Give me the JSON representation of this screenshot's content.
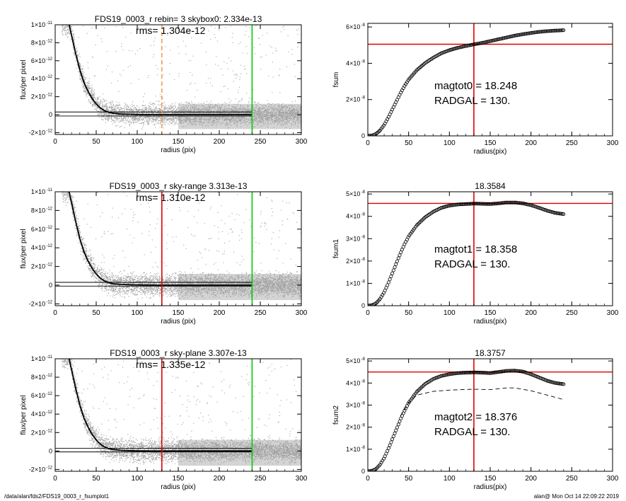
{
  "footer": {
    "path": "/data/alan/fds2/FDS19_0003_r_fsumplot1",
    "stamp": "alan@  Mon Oct 14 22:09:22 2019"
  },
  "colors": {
    "scatter": "#a0a0a0",
    "profile": "#000000",
    "red": "#e00000",
    "green": "#00cc00",
    "orange": "#f0a050"
  },
  "chart_data": [
    {
      "type": "scatter",
      "title": "FDS19_0003_r rebin= 3    skybox0:  2.334e-13",
      "annotation": "rms= 1.304e-12",
      "xlabel": "radius (pix)",
      "ylabel": "flux/per pixel",
      "xlim": [
        0,
        300
      ],
      "ylim": [
        -2.2e-12,
        1e-11
      ],
      "xticks": [
        0,
        50,
        100,
        150,
        200,
        250,
        300
      ],
      "yticks": [
        {
          "v": -2e-12,
          "m": "-2",
          "e": "-12"
        },
        {
          "v": 0,
          "m": "0",
          "e": ""
        },
        {
          "v": 2e-12,
          "m": "2",
          "e": "-12"
        },
        {
          "v": 4e-12,
          "m": "4",
          "e": "-12"
        },
        {
          "v": 6e-12,
          "m": "6",
          "e": "-12"
        },
        {
          "v": 8e-12,
          "m": "8",
          "e": "-12"
        },
        {
          "v": 1e-11,
          "m": "1",
          "e": "-11"
        }
      ],
      "vlines": [
        {
          "x": 130,
          "color": "orange",
          "dashed": true
        },
        {
          "x": 240,
          "color": "green"
        }
      ],
      "hlines": [
        3e-13,
        -1.5e-13
      ],
      "profile_x": [
        17,
        20,
        25,
        30,
        35,
        40,
        45,
        50,
        55,
        60,
        65,
        70,
        80,
        90,
        100,
        120,
        150,
        200,
        240
      ],
      "profile_y": [
        1e-11,
        8.8e-12,
        6.8e-12,
        5e-12,
        3.6e-12,
        2.6e-12,
        1.8e-12,
        1.2e-12,
        7.5e-13,
        4.5e-13,
        2.6e-13,
        1.6e-13,
        7e-14,
        4e-14,
        2e-14,
        0,
        0,
        0,
        0
      ]
    },
    {
      "type": "scatter",
      "title": "FDS19_0003_r sky-range  3.313e-13",
      "annotation": "rms= 1.310e-12",
      "xlabel": "radius (pix)",
      "ylabel": "flux/per pixel",
      "xlim": [
        0,
        300
      ],
      "ylim": [
        -2.2e-12,
        1e-11
      ],
      "xticks": [
        0,
        50,
        100,
        150,
        200,
        250,
        300
      ],
      "yticks": [
        {
          "v": -2e-12,
          "m": "-2",
          "e": "-12"
        },
        {
          "v": 0,
          "m": "0",
          "e": ""
        },
        {
          "v": 2e-12,
          "m": "2",
          "e": "-12"
        },
        {
          "v": 4e-12,
          "m": "4",
          "e": "-12"
        },
        {
          "v": 6e-12,
          "m": "6",
          "e": "-12"
        },
        {
          "v": 8e-12,
          "m": "8",
          "e": "-12"
        },
        {
          "v": 1e-11,
          "m": "1",
          "e": "-11"
        }
      ],
      "vlines": [
        {
          "x": 130,
          "color": "red"
        },
        {
          "x": 240,
          "color": "green"
        }
      ],
      "hlines": [
        3e-13,
        -1e-13
      ],
      "profile_x": [
        17,
        20,
        25,
        30,
        35,
        40,
        45,
        50,
        55,
        60,
        65,
        70,
        80,
        90,
        100,
        120,
        150,
        200,
        240
      ],
      "profile_y": [
        1e-11,
        8.8e-12,
        6.8e-12,
        5e-12,
        3.6e-12,
        2.6e-12,
        1.8e-12,
        1.2e-12,
        7.5e-13,
        4.5e-13,
        2.6e-13,
        1.6e-13,
        7e-14,
        4e-14,
        2e-14,
        0,
        0,
        0,
        0
      ]
    },
    {
      "type": "scatter",
      "title": "FDS19_0003_r sky-plane  3.307e-13",
      "annotation": "rms= 1.335e-12",
      "xlabel": "radius (pix)",
      "ylabel": "flux/per pixel",
      "xlim": [
        0,
        300
      ],
      "ylim": [
        -2.2e-12,
        1e-11
      ],
      "xticks": [
        0,
        50,
        100,
        150,
        200,
        250,
        300
      ],
      "yticks": [
        {
          "v": -2e-12,
          "m": "-2",
          "e": "-12"
        },
        {
          "v": 0,
          "m": "0",
          "e": ""
        },
        {
          "v": 2e-12,
          "m": "2",
          "e": "-12"
        },
        {
          "v": 4e-12,
          "m": "4",
          "e": "-12"
        },
        {
          "v": 6e-12,
          "m": "6",
          "e": "-12"
        },
        {
          "v": 8e-12,
          "m": "8",
          "e": "-12"
        },
        {
          "v": 1e-11,
          "m": "1",
          "e": "-11"
        }
      ],
      "vlines": [
        {
          "x": 130,
          "color": "red"
        },
        {
          "x": 240,
          "color": "green"
        }
      ],
      "hlines": [
        3e-13,
        -1e-13
      ],
      "profile_x": [
        17,
        20,
        25,
        30,
        35,
        40,
        45,
        50,
        55,
        60,
        65,
        70,
        80,
        90,
        100,
        120,
        150,
        200,
        240
      ],
      "profile_y": [
        1e-11,
        8.8e-12,
        6.8e-12,
        5e-12,
        3.6e-12,
        2.6e-12,
        1.8e-12,
        1.2e-12,
        7.5e-13,
        4.5e-13,
        2.6e-13,
        1.6e-13,
        7e-14,
        4e-14,
        2e-14,
        0,
        0,
        0,
        0
      ]
    },
    {
      "type": "line",
      "title": "",
      "annotations": [
        "magtot0 =  18.248",
        "RADGAL =    130."
      ],
      "xlabel": "radius(pix)",
      "ylabel": "fsum",
      "xlim": [
        0,
        300
      ],
      "ylim": [
        0,
        6.2e-08
      ],
      "xticks": [
        0,
        50,
        100,
        150,
        200,
        250,
        300
      ],
      "yticks": [
        {
          "v": 0,
          "m": "0",
          "e": ""
        },
        {
          "v": 2e-08,
          "m": "2×10",
          "e": "-8"
        },
        {
          "v": 4e-08,
          "m": "4×10",
          "e": "-8"
        },
        {
          "v": 6e-08,
          "m": "6×10",
          "e": "-8"
        }
      ],
      "vlines": [
        {
          "x": 130,
          "color": "red"
        }
      ],
      "hline": 5.05e-08,
      "curve_x": [
        0,
        5,
        10,
        15,
        20,
        25,
        30,
        35,
        40,
        45,
        50,
        60,
        70,
        80,
        90,
        100,
        110,
        120,
        130,
        140,
        150,
        160,
        170,
        180,
        190,
        200,
        210,
        220,
        230,
        240
      ],
      "curve_y": [
        0,
        2e-10,
        1e-09,
        3e-09,
        6e-09,
        1e-08,
        1.45e-08,
        1.9e-08,
        2.35e-08,
        2.75e-08,
        3.1e-08,
        3.62e-08,
        4e-08,
        4.3e-08,
        4.55e-08,
        4.72e-08,
        4.85e-08,
        4.95e-08,
        5.04e-08,
        5.12e-08,
        5.22e-08,
        5.32e-08,
        5.42e-08,
        5.52e-08,
        5.6e-08,
        5.67e-08,
        5.73e-08,
        5.77e-08,
        5.8e-08,
        5.82e-08
      ]
    },
    {
      "type": "line",
      "title": "18.3584",
      "annotations": [
        "magtot1 =  18.358",
        "RADGAL =    130."
      ],
      "xlabel": "radius(pix)",
      "ylabel": "fsum1",
      "xlim": [
        0,
        300
      ],
      "ylim": [
        0,
        5.1e-08
      ],
      "xticks": [
        0,
        50,
        100,
        150,
        200,
        250,
        300
      ],
      "yticks": [
        {
          "v": 0,
          "m": "0",
          "e": ""
        },
        {
          "v": 1e-08,
          "m": "1×10",
          "e": "-8"
        },
        {
          "v": 2e-08,
          "m": "2×10",
          "e": "-8"
        },
        {
          "v": 3e-08,
          "m": "3×10",
          "e": "-8"
        },
        {
          "v": 4e-08,
          "m": "4×10",
          "e": "-8"
        },
        {
          "v": 5e-08,
          "m": "5×10",
          "e": "-8"
        }
      ],
      "vlines": [
        {
          "x": 130,
          "color": "red"
        }
      ],
      "hline": 4.58e-08,
      "curve_x": [
        0,
        5,
        10,
        15,
        20,
        25,
        30,
        35,
        40,
        45,
        50,
        60,
        70,
        80,
        90,
        100,
        110,
        120,
        130,
        140,
        150,
        160,
        170,
        180,
        190,
        200,
        210,
        220,
        230,
        240
      ],
      "curve_y": [
        0,
        2e-10,
        1e-09,
        3e-09,
        6e-09,
        1e-08,
        1.45e-08,
        1.9e-08,
        2.35e-08,
        2.75e-08,
        3.1e-08,
        3.6e-08,
        3.95e-08,
        4.2e-08,
        4.38e-08,
        4.48e-08,
        4.53e-08,
        4.55e-08,
        4.57e-08,
        4.56e-08,
        4.55e-08,
        4.58e-08,
        4.62e-08,
        4.62e-08,
        4.58e-08,
        4.5e-08,
        4.38e-08,
        4.25e-08,
        4.15e-08,
        4.1e-08
      ]
    },
    {
      "type": "line",
      "title": "18.3757",
      "annotations": [
        "magtot2 =  18.376",
        "RADGAL =    130."
      ],
      "xlabel": "radius(pix)",
      "ylabel": "fsum2",
      "xlim": [
        0,
        300
      ],
      "ylim": [
        0,
        5.1e-08
      ],
      "xticks": [
        0,
        50,
        100,
        150,
        200,
        250,
        300
      ],
      "yticks": [
        {
          "v": 0,
          "m": "0",
          "e": ""
        },
        {
          "v": 1e-08,
          "m": "1×10",
          "e": "-8"
        },
        {
          "v": 2e-08,
          "m": "2×10",
          "e": "-8"
        },
        {
          "v": 3e-08,
          "m": "3×10",
          "e": "-8"
        },
        {
          "v": 4e-08,
          "m": "4×10",
          "e": "-8"
        },
        {
          "v": 5e-08,
          "m": "5×10",
          "e": "-8"
        }
      ],
      "vlines": [
        {
          "x": 130,
          "color": "red"
        }
      ],
      "hline": 4.5e-08,
      "curve_x": [
        0,
        5,
        10,
        15,
        20,
        25,
        30,
        35,
        40,
        45,
        50,
        60,
        70,
        80,
        90,
        100,
        110,
        120,
        130,
        140,
        150,
        160,
        170,
        180,
        190,
        200,
        210,
        220,
        230,
        240
      ],
      "curve_y": [
        0,
        2e-10,
        1e-09,
        3e-09,
        6e-09,
        1e-08,
        1.45e-08,
        1.9e-08,
        2.35e-08,
        2.75e-08,
        3.1e-08,
        3.6e-08,
        3.95e-08,
        4.18e-08,
        4.32e-08,
        4.4e-08,
        4.45e-08,
        4.47e-08,
        4.48e-08,
        4.47e-08,
        4.45e-08,
        4.5e-08,
        4.55e-08,
        4.56e-08,
        4.52e-08,
        4.4e-08,
        4.25e-08,
        4.1e-08,
        4e-08,
        3.95e-08
      ],
      "dashed_x": [
        40,
        50,
        60,
        80,
        100,
        130,
        150,
        170,
        180,
        200,
        220,
        240
      ],
      "dashed_y": [
        2.5e-08,
        3.1e-08,
        3.45e-08,
        3.62e-08,
        3.68e-08,
        3.72e-08,
        3.7e-08,
        3.78e-08,
        3.78e-08,
        3.65e-08,
        3.45e-08,
        3.25e-08
      ]
    }
  ]
}
